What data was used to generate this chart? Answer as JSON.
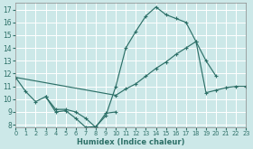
{
  "xlabel": "Humidex (Indice chaleur)",
  "bg_color": "#cce8e8",
  "grid_color": "#ffffff",
  "line_color": "#2d7068",
  "xlim": [
    0,
    23
  ],
  "ylim": [
    7.8,
    17.5
  ],
  "xticks": [
    0,
    1,
    2,
    3,
    4,
    5,
    6,
    7,
    8,
    9,
    10,
    11,
    12,
    13,
    14,
    15,
    16,
    17,
    18,
    19,
    20,
    21,
    22,
    23
  ],
  "yticks": [
    8,
    9,
    10,
    11,
    12,
    13,
    14,
    15,
    16,
    17
  ],
  "line1_x": [
    0,
    1,
    2,
    3,
    4,
    5,
    6,
    7,
    8,
    9,
    10,
    11,
    12,
    13,
    14,
    15,
    16,
    17,
    18,
    19,
    20,
    21
  ],
  "line1_y": [
    11.7,
    10.6,
    9.8,
    10.2,
    9.0,
    9.1,
    8.5,
    7.8,
    7.85,
    8.7,
    11.0,
    14.0,
    15.3,
    16.5,
    17.2,
    16.6,
    16.3,
    16.0,
    14.5,
    13.0,
    11.8,
    null
  ],
  "line2_x": [
    3,
    4,
    5,
    6,
    7,
    8,
    9,
    10
  ],
  "line2_y": [
    10.2,
    9.2,
    9.2,
    9.0,
    8.5,
    7.8,
    8.9,
    9.0
  ],
  "line3_x": [
    0,
    10,
    11,
    12,
    13,
    14,
    15,
    16,
    17,
    18,
    19,
    20,
    21,
    22,
    23
  ],
  "line3_y": [
    11.7,
    10.3,
    10.8,
    11.2,
    11.8,
    12.4,
    12.9,
    13.5,
    14.0,
    14.5,
    10.5,
    10.7,
    10.9,
    11.0,
    11.0
  ]
}
